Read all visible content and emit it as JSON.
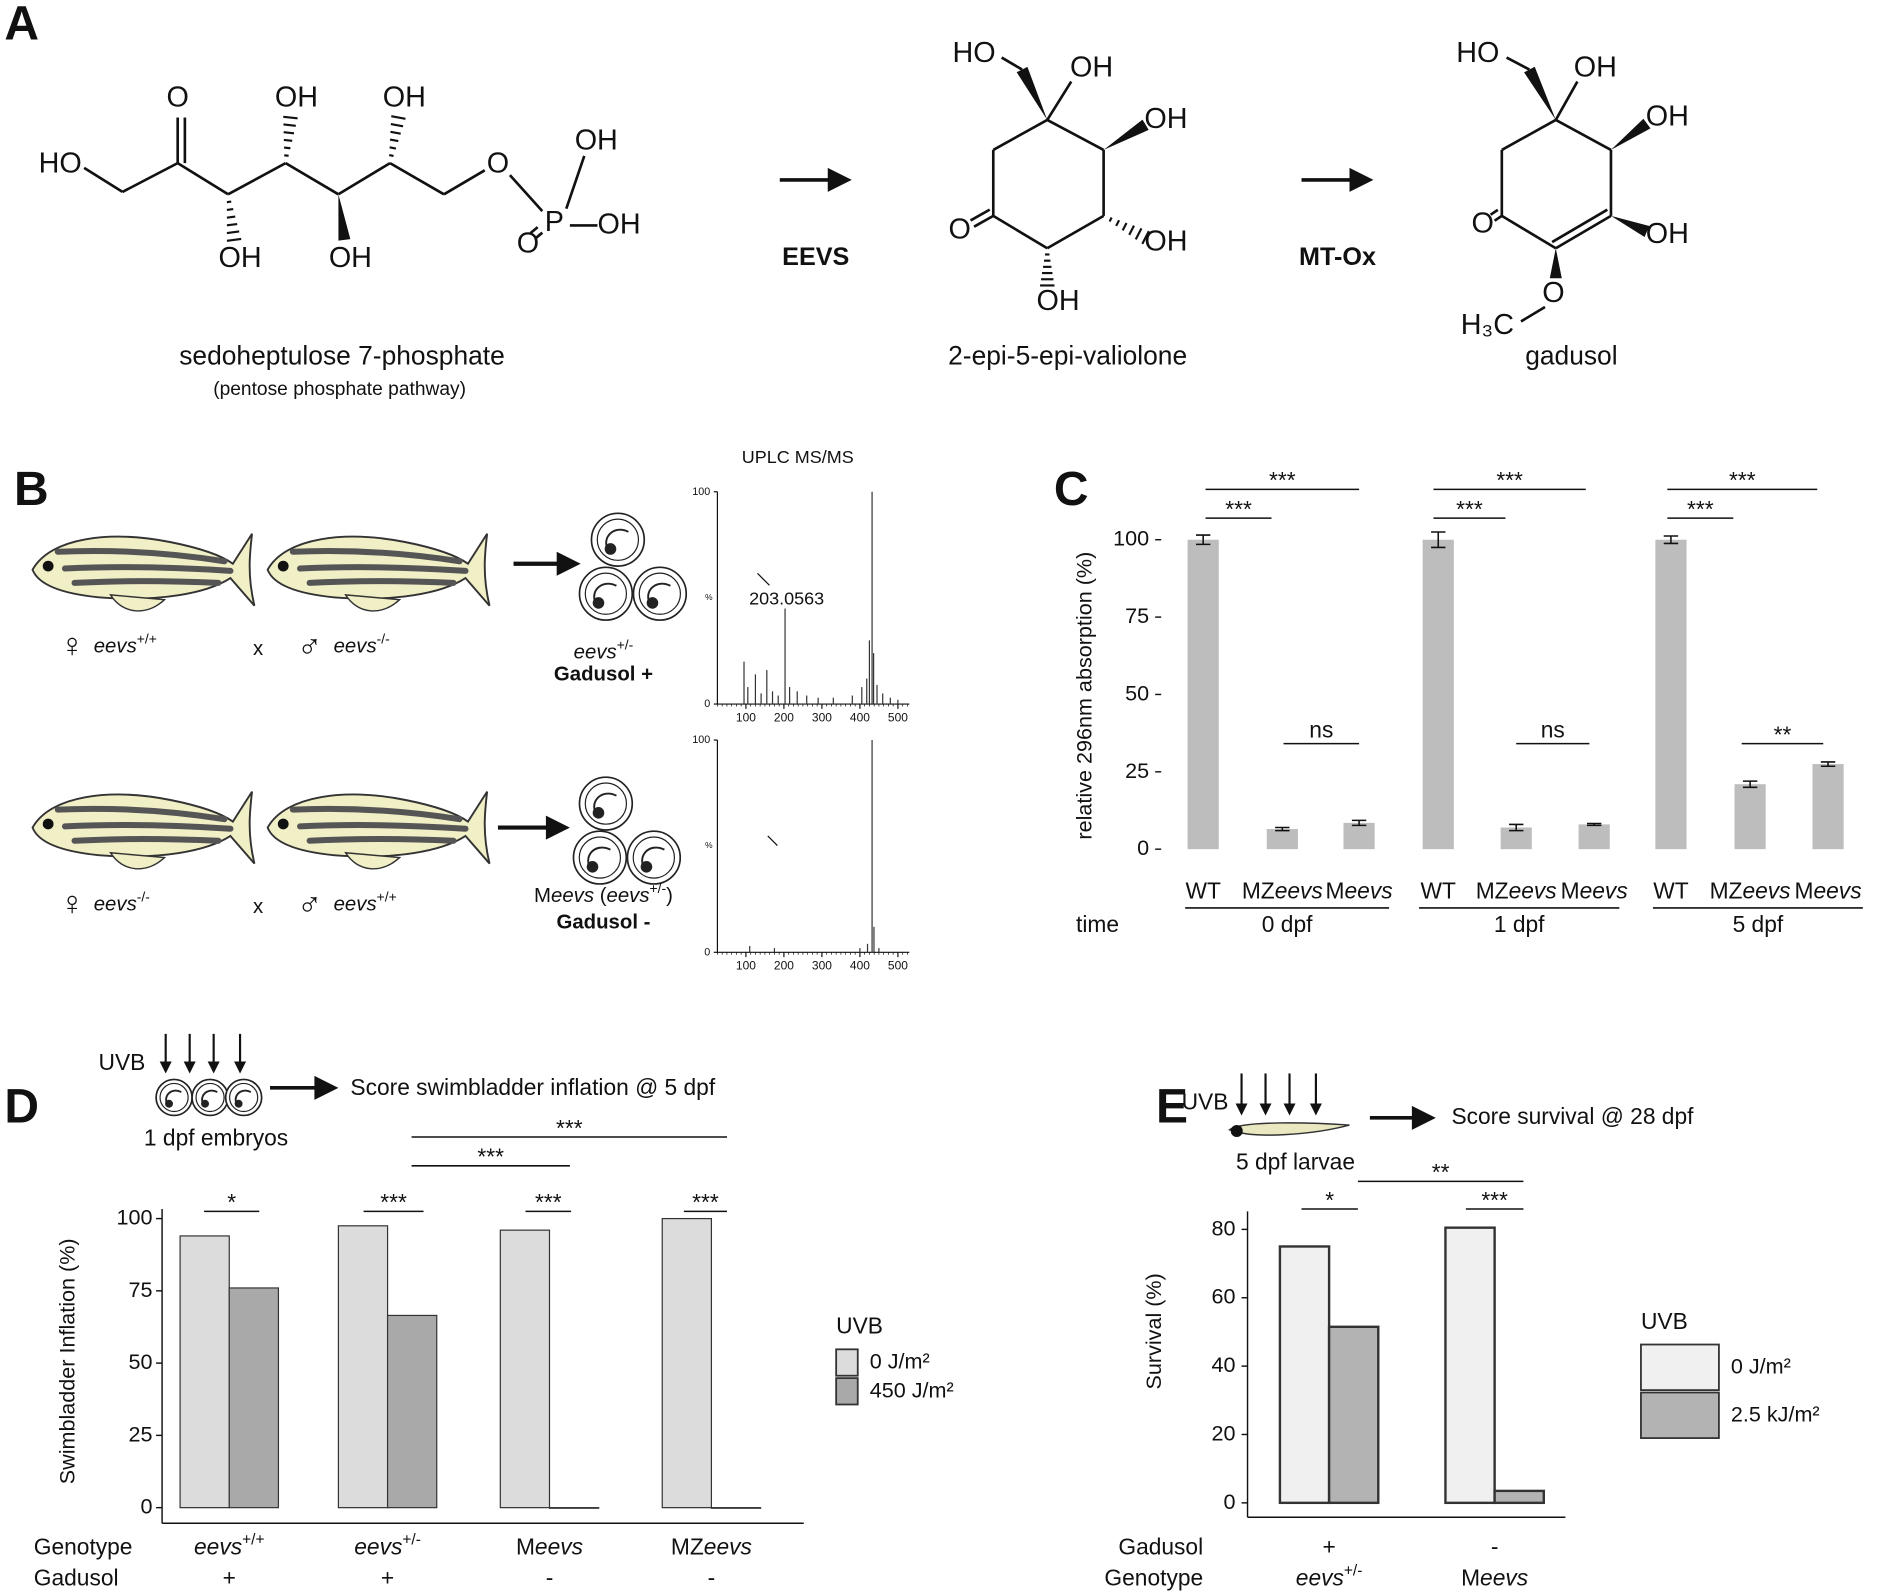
{
  "panel_a": {
    "letter": "A",
    "molecules": [
      {
        "name": "sedoheptulose 7-phosphate",
        "note": "(pentose phosphate pathway)",
        "atoms": [
          "HO",
          "O",
          "OH",
          "OH",
          "OH",
          "OH",
          "O",
          "P",
          "OH",
          "OH",
          "O"
        ]
      },
      {
        "name": "2-epi-5-epi-valiolone",
        "atoms": [
          "HO",
          "OH",
          "OH",
          "OH",
          "OH",
          "O"
        ]
      },
      {
        "name": "gadusol",
        "atoms": [
          "HO",
          "OH",
          "OH",
          "OH",
          "O",
          "H₃C",
          "O"
        ]
      }
    ],
    "enzymes": [
      "EEVS",
      "MT-Ox"
    ]
  },
  "panel_b": {
    "letter": "B",
    "method": "UPLC MS/MS",
    "crosses": [
      {
        "female_symbol": "♀",
        "female": "eevs+/+",
        "cross": "x",
        "male_symbol": "♂",
        "male": "eevs-/-",
        "offspring": "eevs+/-",
        "gadusol": "Gadusol +"
      },
      {
        "female_symbol": "♀",
        "female": "eevs-/-",
        "cross": "x",
        "male_symbol": "♂",
        "male": "eevs+/+",
        "offspring": "Meevs (eevs+/-)",
        "gadusol": "Gadusol -"
      }
    ]
  },
  "chart_data": [
    {
      "type": "spectrum",
      "y_label": "%",
      "annotation": "203.0563",
      "color": "#333333",
      "x": [
        95,
        105,
        125,
        140,
        155,
        170,
        185,
        203,
        215,
        235,
        260,
        290,
        330,
        380,
        405,
        418,
        425,
        432,
        436,
        445,
        460,
        480,
        500
      ],
      "values": [
        20,
        8,
        14,
        5,
        16,
        6,
        4,
        45,
        8,
        6,
        4,
        3,
        3,
        4,
        8,
        12,
        30,
        100,
        24,
        9,
        5,
        3,
        2
      ],
      "xlim": [
        25,
        530
      ],
      "xticks": [
        100,
        200,
        300,
        400,
        500
      ],
      "ylim": [
        0,
        100
      ],
      "yticks": [
        0,
        100
      ]
    },
    {
      "type": "spectrum",
      "y_label": "%",
      "color": "#333333",
      "x": [
        110,
        175,
        400,
        420,
        432,
        437,
        450
      ],
      "values": [
        3,
        2,
        2,
        4,
        100,
        12,
        2
      ],
      "xlim": [
        25,
        530
      ],
      "xticks": [
        100,
        200,
        300,
        400,
        500
      ],
      "ylim": [
        0,
        100
      ],
      "yticks": [
        0,
        100
      ]
    },
    {
      "panel": "C",
      "type": "bar",
      "y_label": "relative 296nm absorption (%)",
      "group_title": "time",
      "categories": [
        "WT",
        "MZeevs",
        "Meevs",
        "WT",
        "MZeevs",
        "Meevs",
        "WT",
        "MZeevs",
        "Meevs"
      ],
      "groups": [
        "0 dpf",
        "1 dpf",
        "5 dpf"
      ],
      "values": [
        100,
        6.5,
        8.5,
        100,
        7,
        8,
        100,
        21,
        27.5
      ],
      "errors": [
        1.5,
        0.5,
        0.8,
        2.5,
        1,
        0.3,
        1.2,
        1,
        0.7
      ],
      "color": "#bdbdbd",
      "ylim": [
        0,
        100
      ],
      "yticks": [
        0,
        25,
        50,
        75,
        100
      ],
      "significance": [
        "***",
        "***",
        "ns",
        "***",
        "***",
        "ns",
        "***",
        "***",
        "**"
      ]
    },
    {
      "panel": "D",
      "type": "bar",
      "y_label": "Swimbladder Inflation (%)",
      "schematic": {
        "stimulus": "UVB",
        "subject": "1 dpf embryos",
        "readout": "Score  swimbladder inflation @ 5 dpf"
      },
      "category_title": "Genotype",
      "categories": [
        "eevs+/+",
        "eevs+/-",
        "Meevs",
        "MZeevs"
      ],
      "category2_title": "Gadusol",
      "categories2": [
        "+",
        "+",
        "-",
        "-"
      ],
      "legend_title": "UVB",
      "series": [
        {
          "name": "0 J/m²",
          "color": "#dcdcdc",
          "values": [
            94,
            97.5,
            96,
            100
          ]
        },
        {
          "name": "450 J/m²",
          "color": "#a9a9a9",
          "values": [
            76,
            66.5,
            0,
            0
          ]
        }
      ],
      "ylim": [
        0,
        100
      ],
      "yticks": [
        0,
        25,
        50,
        75,
        100
      ],
      "significance": [
        "*",
        "***",
        "***",
        "***",
        "***",
        "***"
      ]
    },
    {
      "panel": "E",
      "type": "bar",
      "y_label": "Survival (%)",
      "schematic": {
        "stimulus": "UVB",
        "subject": "5 dpf larvae",
        "readout": "Score survival @ 28 dpf"
      },
      "category_title": "Genotype",
      "categories": [
        "eevs+/-",
        "Meevs"
      ],
      "category2_title": "Gadusol",
      "categories2": [
        "+",
        "-"
      ],
      "legend_title": "UVB",
      "series": [
        {
          "name": "0 J/m²",
          "color": "#f0f0f0",
          "values": [
            75,
            80.5
          ]
        },
        {
          "name": "2.5 kJ/m²",
          "color": "#b3b3b3",
          "values": [
            51.5,
            3.5
          ]
        }
      ],
      "ylim": [
        0,
        80
      ],
      "yticks": [
        0,
        20,
        40,
        60,
        80
      ],
      "significance": [
        "*",
        "***",
        "**"
      ]
    }
  ]
}
